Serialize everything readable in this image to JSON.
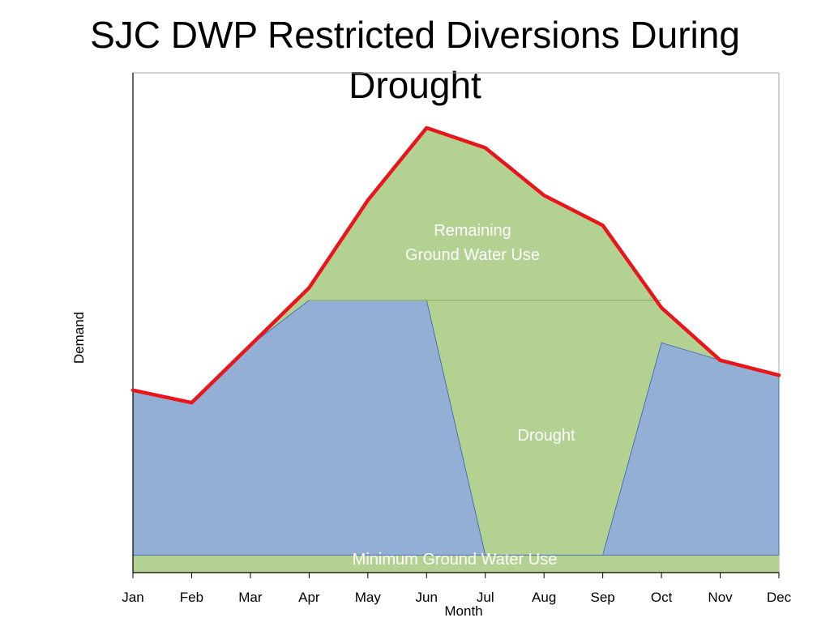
{
  "chart_title": "SJC DWP Restricted Diversions During Drought",
  "chart_data": {
    "type": "area",
    "title": "SJC DWP Restricted Diversions During Drought",
    "xlabel": "Month",
    "ylabel": "Demand",
    "categories": [
      "Jan",
      "Feb",
      "Mar",
      "Apr",
      "May",
      "Jun",
      "Jul",
      "Aug",
      "Sep",
      "Oct",
      "Nov",
      "Dec"
    ],
    "ylim": [
      0,
      100
    ],
    "series": [
      {
        "values": [
          36.5,
          34,
          45.5,
          57,
          74.5,
          89,
          85,
          75.5,
          69.5,
          53,
          42.5,
          39.5
        ]
      },
      {
        "values": [
          3.5,
          3.5,
          3.5,
          3.5,
          3.5,
          3.5,
          3.5,
          3.5,
          3.5,
          3.5,
          3.5,
          3.5
        ]
      },
      {
        "values": [
          36.5,
          34,
          45.5,
          54.5,
          54.5,
          54.5,
          3.5,
          3.5,
          3.5,
          46,
          42.5,
          39.5
        ]
      },
      {
        "values": [
          0,
          0,
          0,
          54.5,
          54.5,
          54.5,
          54.5,
          54.5,
          54.5,
          0,
          0,
          0
        ]
      }
    ],
    "annotations": [
      "Remaining\nGround Water Use",
      "Drought",
      "Minimum Ground Water Use"
    ],
    "grid": false,
    "colors": {
      "demand_line": "#e8161a",
      "green_area": "#b3d291",
      "blue_area": "#93afd5",
      "blue_edge": "#4a72b0"
    }
  },
  "labels": {
    "remaining_line1": "Remaining",
    "remaining_line2": "Ground Water Use",
    "drought": "Drought",
    "minimum": "Minimum Ground Water Use"
  }
}
